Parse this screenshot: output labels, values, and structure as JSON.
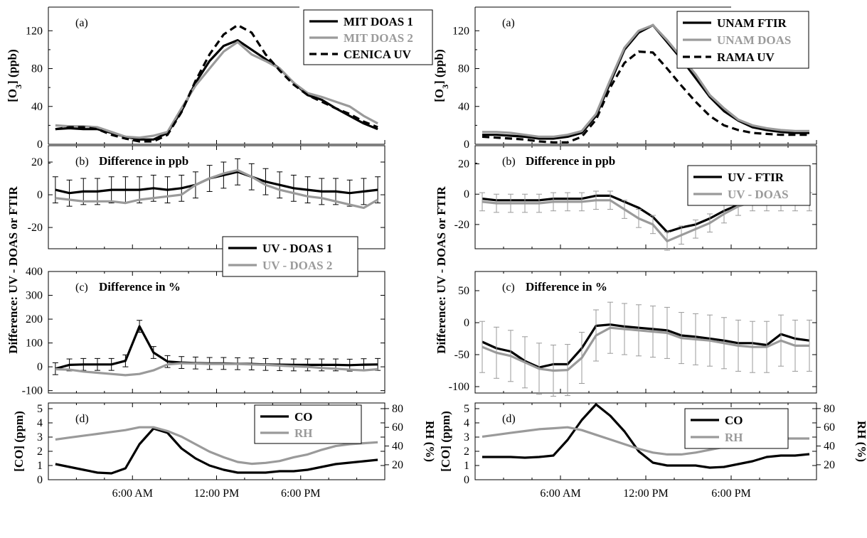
{
  "colors": {
    "black": "#000000",
    "gray": "#9a9a9a",
    "frame": "#000000"
  },
  "x_tick_labels": [
    "6:00 AM",
    "12:00 PM",
    "6:00 PM"
  ],
  "shared_ylabels": {
    "left": "Difference:  UV - DOAS or FTIR",
    "right": "Difference:  UV - DOAS or FTIR"
  },
  "chart_data": [
    {
      "type": "line",
      "figure": "left",
      "panel": "a",
      "panel_label": "(a)",
      "title": "",
      "ylabel": "[O3] (ppb)",
      "ylim": [
        0,
        145
      ],
      "yticks": [
        0,
        40,
        80,
        120
      ],
      "xlim": [
        0,
        24
      ],
      "legend": "top-right",
      "x": [
        0,
        1,
        2,
        3,
        4,
        5,
        6,
        7,
        8,
        9,
        10,
        11,
        12,
        13,
        14,
        15,
        16,
        17,
        18,
        19,
        20,
        21,
        22,
        23
      ],
      "series": [
        {
          "name": "MIT DOAS 1",
          "color": "#000000",
          "dash": "",
          "values": [
            16,
            17,
            16,
            16,
            12,
            8,
            5,
            5,
            12,
            35,
            65,
            88,
            104,
            110,
            100,
            90,
            80,
            65,
            52,
            47,
            38,
            30,
            22,
            16
          ]
        },
        {
          "name": "MIT DOAS 2",
          "color": "#9a9a9a",
          "dash": "",
          "values": [
            20,
            19,
            19,
            18,
            13,
            8,
            7,
            9,
            13,
            38,
            62,
            80,
            98,
            108,
            95,
            88,
            80,
            65,
            54,
            50,
            45,
            40,
            30,
            22
          ]
        },
        {
          "name": "CENICA UV",
          "color": "#000000",
          "dash": "10,6",
          "values": [
            16,
            18,
            18,
            16,
            10,
            6,
            3,
            3,
            10,
            34,
            67,
            95,
            116,
            126,
            118,
            95,
            78,
            63,
            52,
            45,
            38,
            32,
            24,
            18
          ]
        }
      ]
    },
    {
      "type": "line",
      "figure": "left",
      "panel": "b",
      "panel_label": "(b)",
      "title": "Difference in ppb",
      "ylabel": "",
      "ylim": [
        -33,
        30
      ],
      "yticks": [
        -20,
        0,
        20
      ],
      "xlim": [
        0,
        24
      ],
      "error_bars": true,
      "x": [
        0,
        1,
        2,
        3,
        4,
        5,
        6,
        7,
        8,
        9,
        10,
        11,
        12,
        13,
        14,
        15,
        16,
        17,
        18,
        19,
        20,
        21,
        22,
        23
      ],
      "series": [
        {
          "name": "UV - DOAS 1",
          "color": "#000000",
          "err": 8,
          "values": [
            3,
            1,
            2,
            2,
            3,
            3,
            3,
            4,
            3,
            4,
            6,
            10,
            12,
            14,
            11,
            8,
            6,
            4,
            3,
            2,
            2,
            1,
            2,
            3
          ]
        },
        {
          "name": "UV - DOAS 2",
          "color": "#9a9a9a",
          "err": 0,
          "values": [
            -2,
            -3,
            -4,
            -4,
            -4,
            -5,
            -3,
            -2,
            -1,
            0,
            6,
            10,
            13,
            15,
            11,
            6,
            3,
            1,
            -1,
            -2,
            -4,
            -6,
            -8,
            -3
          ]
        }
      ]
    },
    {
      "type": "line",
      "figure": "left",
      "panel": "c",
      "panel_label": "(c)",
      "title": "Difference in %",
      "ylabel": "",
      "ylim": [
        -110,
        400
      ],
      "yticks": [
        -100,
        0,
        100,
        200,
        300,
        400
      ],
      "xlim": [
        0,
        24
      ],
      "error_bars": true,
      "legend": "top-center",
      "x": [
        0,
        1,
        2,
        3,
        4,
        5,
        6,
        7,
        8,
        9,
        10,
        11,
        12,
        13,
        14,
        15,
        16,
        17,
        18,
        19,
        20,
        21,
        22,
        23
      ],
      "series": [
        {
          "name": "UV - DOAS 1",
          "color": "#000000",
          "err": 25,
          "values": [
            -8,
            8,
            10,
            10,
            10,
            25,
            170,
            60,
            22,
            18,
            16,
            14,
            14,
            13,
            12,
            10,
            9,
            8,
            8,
            8,
            8,
            7,
            9,
            10
          ]
        },
        {
          "name": "UV - DOAS 2",
          "color": "#9a9a9a",
          "err": 0,
          "values": [
            -10,
            -12,
            -20,
            -25,
            -30,
            -35,
            -30,
            -15,
            10,
            15,
            14,
            12,
            12,
            12,
            10,
            8,
            5,
            2,
            0,
            -5,
            -8,
            -12,
            -15,
            -10
          ]
        }
      ]
    },
    {
      "type": "line",
      "figure": "left",
      "panel": "d",
      "panel_label": "(d)",
      "title": "",
      "ylabel": "[CO] (ppm)",
      "y2label": "RH (%)",
      "ylim": [
        0,
        5.4
      ],
      "yticks": [
        0,
        1,
        2,
        3,
        4,
        5
      ],
      "y2lim": [
        4,
        86
      ],
      "y2ticks": [
        20,
        40,
        60,
        80
      ],
      "xlim": [
        0,
        24
      ],
      "legend": "top-right",
      "x": [
        0,
        1,
        2,
        3,
        4,
        5,
        6,
        7,
        8,
        9,
        10,
        11,
        12,
        13,
        14,
        15,
        16,
        17,
        18,
        19,
        20,
        21,
        22,
        23
      ],
      "series": [
        {
          "name": "CO",
          "axis": "y",
          "color": "#000000",
          "values": [
            1.1,
            0.9,
            0.7,
            0.5,
            0.45,
            0.8,
            2.5,
            3.6,
            3.3,
            2.2,
            1.5,
            1.0,
            0.7,
            0.5,
            0.5,
            0.5,
            0.6,
            0.6,
            0.7,
            0.9,
            1.1,
            1.2,
            1.3,
            1.4
          ]
        },
        {
          "name": "RH",
          "axis": "y2",
          "color": "#9a9a9a",
          "values": [
            47,
            49,
            51,
            53,
            55,
            57,
            60,
            60,
            56,
            50,
            42,
            34,
            28,
            23,
            21,
            22,
            24,
            28,
            31,
            36,
            40,
            42,
            43,
            44
          ]
        }
      ]
    },
    {
      "type": "line",
      "figure": "right",
      "panel": "a",
      "panel_label": "(a)",
      "title": "",
      "ylabel": "[O3] (ppb)",
      "ylim": [
        0,
        145
      ],
      "yticks": [
        0,
        40,
        80,
        120
      ],
      "xlim": [
        0,
        24
      ],
      "legend": "top-right",
      "x": [
        0,
        1,
        2,
        3,
        4,
        5,
        6,
        7,
        8,
        9,
        10,
        11,
        12,
        13,
        14,
        15,
        16,
        17,
        18,
        19,
        20,
        21,
        22,
        23
      ],
      "series": [
        {
          "name": "UNAM FTIR",
          "color": "#000000",
          "dash": "",
          "values": [
            10,
            10,
            9,
            8,
            6,
            6,
            8,
            12,
            30,
            65,
            100,
            118,
            126,
            108,
            90,
            70,
            50,
            35,
            25,
            18,
            15,
            13,
            12,
            12
          ]
        },
        {
          "name": "UNAM DOAS",
          "color": "#9a9a9a",
          "dash": "",
          "values": [
            13,
            13,
            12,
            10,
            8,
            8,
            10,
            14,
            32,
            68,
            102,
            120,
            126,
            110,
            92,
            74,
            52,
            38,
            26,
            20,
            17,
            15,
            14,
            14
          ]
        },
        {
          "name": "RAMA UV",
          "color": "#000000",
          "dash": "10,6",
          "values": [
            8,
            7,
            6,
            5,
            3,
            2,
            2,
            8,
            26,
            60,
            86,
            98,
            97,
            80,
            62,
            45,
            30,
            20,
            15,
            12,
            11,
            10,
            10,
            10
          ]
        }
      ]
    },
    {
      "type": "line",
      "figure": "right",
      "panel": "b",
      "panel_label": "(b)",
      "title": "Difference in ppb",
      "ylabel": "",
      "ylim": [
        -36,
        32
      ],
      "yticks": [
        -20,
        0,
        20
      ],
      "xlim": [
        0,
        24
      ],
      "error_bars": true,
      "legend": "top-right",
      "x": [
        0,
        1,
        2,
        3,
        4,
        5,
        6,
        7,
        8,
        9,
        10,
        11,
        12,
        13,
        14,
        15,
        16,
        17,
        18,
        19,
        20,
        21,
        22,
        23
      ],
      "series": [
        {
          "name": "UV - FTIR",
          "color": "#000000",
          "err": 0,
          "values": [
            -3,
            -4,
            -4,
            -4,
            -4,
            -3,
            -3,
            -3,
            -1,
            -1,
            -5,
            -9,
            -15,
            -25,
            -22,
            -20,
            -16,
            -11,
            -7,
            -4,
            -3,
            -3,
            -3,
            -3
          ]
        },
        {
          "name": "UV - DOAS",
          "color": "#9a9a9a",
          "err": 6,
          "values": [
            -5,
            -6,
            -6,
            -6,
            -6,
            -5,
            -5,
            -5,
            -4,
            -4,
            -10,
            -16,
            -20,
            -31,
            -27,
            -23,
            -19,
            -13,
            -8,
            -5,
            -5,
            -5,
            -5,
            -5
          ]
        }
      ]
    },
    {
      "type": "line",
      "figure": "right",
      "panel": "c",
      "panel_label": "(c)",
      "title": "Difference in %",
      "ylabel": "",
      "ylim": [
        -110,
        80
      ],
      "yticks": [
        -100,
        -50,
        0,
        50
      ],
      "xlim": [
        0,
        24
      ],
      "error_bars": true,
      "x": [
        0,
        1,
        2,
        3,
        4,
        5,
        6,
        7,
        8,
        9,
        10,
        11,
        12,
        13,
        14,
        15,
        16,
        17,
        18,
        19,
        20,
        21,
        22,
        23
      ],
      "series": [
        {
          "name": "UV - FTIR",
          "color": "#000000",
          "err": 0,
          "values": [
            -30,
            -40,
            -45,
            -60,
            -70,
            -65,
            -65,
            -40,
            -5,
            -3,
            -6,
            -8,
            -10,
            -12,
            -20,
            -22,
            -25,
            -28,
            -32,
            -32,
            -35,
            -18,
            -25,
            -28
          ]
        },
        {
          "name": "UV - DOAS",
          "color": "#9a9a9a",
          "err": 40,
          "values": [
            -38,
            -47,
            -52,
            -62,
            -72,
            -75,
            -74,
            -55,
            -20,
            -8,
            -10,
            -12,
            -14,
            -16,
            -24,
            -26,
            -28,
            -32,
            -36,
            -38,
            -38,
            -28,
            -36,
            -36
          ]
        }
      ]
    },
    {
      "type": "line",
      "figure": "right",
      "panel": "d",
      "panel_label": "(d)",
      "title": "",
      "ylabel": "[CO] (ppm)",
      "y2label": "RH (%)",
      "ylim": [
        0,
        5.4
      ],
      "yticks": [
        0,
        1,
        2,
        3,
        4,
        5
      ],
      "y2lim": [
        4,
        86
      ],
      "y2ticks": [
        20,
        40,
        60,
        80
      ],
      "xlim": [
        0,
        24
      ],
      "legend": "top-right",
      "x": [
        0,
        1,
        2,
        3,
        4,
        5,
        6,
        7,
        8,
        9,
        10,
        11,
        12,
        13,
        14,
        15,
        16,
        17,
        18,
        19,
        20,
        21,
        22,
        23
      ],
      "series": [
        {
          "name": "CO",
          "axis": "y",
          "color": "#000000",
          "values": [
            1.6,
            1.6,
            1.6,
            1.55,
            1.6,
            1.7,
            2.8,
            4.2,
            5.3,
            4.5,
            3.4,
            2.0,
            1.2,
            1.0,
            1.0,
            1.0,
            0.85,
            0.9,
            1.1,
            1.3,
            1.6,
            1.7,
            1.7,
            1.8
          ]
        },
        {
          "name": "RH",
          "axis": "y2",
          "color": "#9a9a9a",
          "values": [
            50,
            52,
            54,
            56,
            58,
            59,
            60,
            57,
            52,
            47,
            42,
            37,
            33,
            31,
            31,
            33,
            36,
            39,
            42,
            45,
            47,
            48,
            48,
            48
          ]
        }
      ]
    }
  ]
}
